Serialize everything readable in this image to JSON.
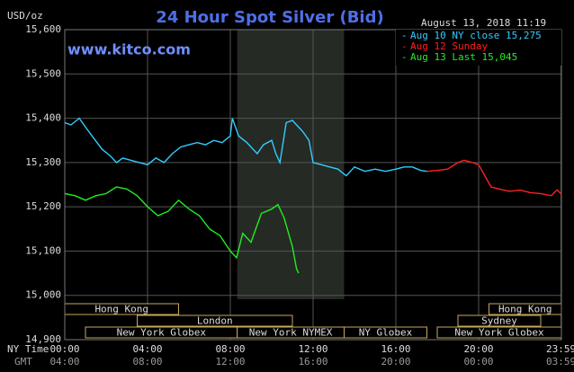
{
  "chart_data": {
    "type": "line",
    "title": "24 Hour Spot Silver (Bid)",
    "y_label": "USD/oz",
    "watermark": "www.kitco.com",
    "timestamp": "August 13, 2018 11:19",
    "x_label": "NY Time",
    "x2_label": "GMT",
    "xlim": [
      0,
      24
    ],
    "ylim": [
      14900,
      15600
    ],
    "grid": true,
    "xticks": [
      {
        "value": 0,
        "label": "00:00"
      },
      {
        "value": 4,
        "label": "04:00"
      },
      {
        "value": 8,
        "label": "08:00"
      },
      {
        "value": 12,
        "label": "12:00"
      },
      {
        "value": 16,
        "label": "16:00"
      },
      {
        "value": 20,
        "label": "20:00"
      },
      {
        "value": 23.983,
        "label": "23:59"
      }
    ],
    "x2ticks": [
      {
        "value": 0,
        "label": "04:00"
      },
      {
        "value": 4,
        "label": "08:00"
      },
      {
        "value": 8,
        "label": "12:00"
      },
      {
        "value": 12,
        "label": "16:00"
      },
      {
        "value": 16,
        "label": "20:00"
      },
      {
        "value": 20,
        "label": "00:00"
      },
      {
        "value": 23.983,
        "label": "03:59"
      }
    ],
    "yticks": [
      {
        "value": 14900,
        "label": "14,900"
      },
      {
        "value": 15000,
        "label": "15,000"
      },
      {
        "value": 15100,
        "label": "15,100"
      },
      {
        "value": 15200,
        "label": "15,200"
      },
      {
        "value": 15300,
        "label": "15,300"
      },
      {
        "value": 15400,
        "label": "15,400"
      },
      {
        "value": 15500,
        "label": "15,500"
      },
      {
        "value": 15600,
        "label": "15,600"
      }
    ],
    "shaded_range": [
      8.333,
      13.5
    ],
    "sessions": [
      {
        "label": "Hong Kong",
        "row": 0,
        "start": 0,
        "end": 5.5
      },
      {
        "label": "London",
        "row": 1,
        "start": 3.5,
        "end": 11
      },
      {
        "label": "New York Globex",
        "row": 2,
        "start": 1,
        "end": 8.333
      },
      {
        "label": "New York NYMEX",
        "row": 2,
        "start": 8.333,
        "end": 13.5
      },
      {
        "label": "NY Globex",
        "row": 2,
        "start": 13.5,
        "end": 17.5
      },
      {
        "label": "Hong Kong",
        "row": 0,
        "start": 20.5,
        "end": 24
      },
      {
        "label": "Sydney",
        "row": 1,
        "start": 19,
        "end": 23
      },
      {
        "label": "New York Globex",
        "row": 2,
        "start": 18,
        "end": 24
      }
    ],
    "series": [
      {
        "name": "Aug 10 NY close 15,275",
        "color": "#33ccff",
        "x": [
          0,
          0.3,
          0.7,
          1,
          1.4,
          1.8,
          2.2,
          2.5,
          2.8,
          3.2,
          3.6,
          4,
          4.4,
          4.8,
          5.2,
          5.6,
          6,
          6.4,
          6.8,
          7.2,
          7.6,
          8,
          8.1,
          8.4,
          8.8,
          9.1,
          9.3,
          9.6,
          10,
          10.2,
          10.4,
          10.7,
          11,
          11.2,
          11.5,
          11.8,
          12,
          12.4,
          12.8,
          13.2,
          13.6,
          14,
          14.5,
          15,
          15.5,
          16,
          16.4,
          16.8,
          17.2,
          17.5
        ],
        "values": [
          15390,
          15385,
          15400,
          15380,
          15355,
          15330,
          15315,
          15300,
          15310,
          15305,
          15300,
          15295,
          15310,
          15300,
          15320,
          15335,
          15340,
          15345,
          15340,
          15350,
          15345,
          15360,
          15400,
          15360,
          15345,
          15330,
          15320,
          15340,
          15350,
          15320,
          15300,
          15390,
          15395,
          15385,
          15370,
          15350,
          15300,
          15295,
          15290,
          15285,
          15270,
          15290,
          15280,
          15285,
          15280,
          15285,
          15290,
          15290,
          15282,
          15280
        ]
      },
      {
        "name": "Aug 12 Sunday",
        "color": "#ff2020",
        "x": [
          17.5,
          18,
          18.5,
          19,
          19.3,
          19.7,
          20,
          20.3,
          20.6,
          21,
          21.5,
          22,
          22.5,
          23,
          23.5,
          23.8,
          24
        ],
        "values": [
          15280,
          15282,
          15285,
          15300,
          15305,
          15300,
          15295,
          15270,
          15245,
          15240,
          15235,
          15238,
          15232,
          15230,
          15225,
          15238,
          15228
        ]
      },
      {
        "name": "Aug 13 Last 15,045",
        "color": "#22ee22",
        "x": [
          0,
          0.5,
          1,
          1.5,
          2,
          2.5,
          3,
          3.5,
          4,
          4.5,
          5,
          5.5,
          6,
          6.5,
          7,
          7.5,
          8,
          8.3,
          8.6,
          9,
          9.5,
          10,
          10.3,
          10.6,
          11,
          11.2,
          11.3
        ],
        "values": [
          15230,
          15225,
          15215,
          15225,
          15230,
          15245,
          15240,
          15225,
          15200,
          15180,
          15190,
          15215,
          15195,
          15180,
          15150,
          15135,
          15100,
          15085,
          15140,
          15120,
          15185,
          15195,
          15205,
          15175,
          15110,
          15060,
          15050
        ]
      }
    ]
  }
}
